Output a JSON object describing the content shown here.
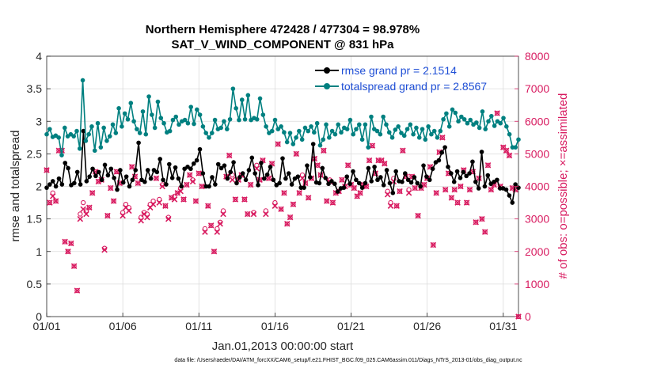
{
  "chart_data": {
    "type": "line",
    "title": "Northern Hemisphere 472428 / 477304 = 98.978%",
    "subtitle": "SAT_V_WIND_COMPONENT @ 831 hPa",
    "xlabel": "Jan.01,2013 00:00:00 start",
    "ylabel": "rmse and totalspread",
    "y2label": "# of obs: o=possible; ×=assimilated",
    "xlim": [
      1,
      32
    ],
    "ylim": [
      0,
      4
    ],
    "y2lim": [
      0,
      8000
    ],
    "grid": true,
    "x_ticks": [
      1,
      6,
      11,
      16,
      21,
      26,
      31
    ],
    "x_tick_labels": [
      "01/01",
      "01/06",
      "01/11",
      "01/16",
      "01/21",
      "01/26",
      "01/31"
    ],
    "y_ticks": [
      0,
      0.5,
      1,
      1.5,
      2,
      2.5,
      3,
      3.5,
      4
    ],
    "y_tick_labels": [
      "0",
      "0.5",
      "1",
      "1.5",
      "2",
      "2.5",
      "3",
      "3.5",
      "4"
    ],
    "y2_ticks": [
      0,
      1000,
      2000,
      3000,
      4000,
      5000,
      6000,
      7000,
      8000
    ],
    "y2_tick_labels": [
      "0",
      "1000",
      "2000",
      "3000",
      "4000",
      "5000",
      "6000",
      "7000",
      "8000"
    ],
    "legend_location": "top-right",
    "series": [
      {
        "name": "rmse grand pr = 2.1514",
        "color": "#000000",
        "axis": "left",
        "values": [
          1.98,
          2.03,
          2.08,
          2.0,
          2.12,
          2.03,
          2.36,
          2.28,
          2.02,
          2.05,
          2.22,
          2.03,
          2.85,
          2.08,
          2.15,
          2.27,
          2.16,
          2.22,
          2.1,
          2.33,
          2.17,
          2.27,
          2.13,
          1.95,
          2.25,
          2.06,
          2.15,
          2.0,
          2.1,
          2.25,
          2.67,
          2.1,
          2.07,
          2.25,
          2.12,
          2.25,
          2.22,
          2.42,
          2.1,
          2.03,
          2.34,
          2.13,
          2.29,
          2.12,
          2.0,
          2.27,
          2.3,
          2.27,
          2.35,
          2.4,
          2.57,
          2.2,
          2.0,
          2.0,
          2.14,
          2.03,
          2.34,
          2.28,
          2.32,
          2.12,
          2.22,
          2.37,
          2.05,
          2.14,
          2.2,
          2.1,
          2.25,
          2.44,
          2.2,
          2.02,
          2.36,
          2.12,
          2.18,
          2.3,
          2.1,
          2.02,
          2.05,
          2.43,
          2.12,
          2.2,
          2.03,
          2.12,
          2.15,
          1.98,
          1.98,
          2.32,
          2.14,
          2.65,
          2.06,
          2.05,
          2.28,
          2.13,
          2.04,
          2.08,
          2.04,
          1.92,
          1.97,
          1.98,
          2.15,
          2.04,
          2.23,
          2.1,
          2.05,
          1.98,
          2.05,
          2.28,
          2.08,
          2.3,
          2.1,
          2.14,
          2.02,
          2.25,
          2.05,
          1.9,
          2.23,
          2.08,
          2.07,
          2.2,
          2.1,
          2.06,
          2.14,
          2.05,
          2.0,
          2.32,
          2.15,
          2.1,
          2.27,
          2.37,
          2.4,
          2.52,
          2.6,
          2.3,
          2.2,
          2.07,
          2.23,
          2.13,
          2.22,
          2.16,
          2.2,
          2.38,
          2.07,
          1.97,
          2.53,
          2.0,
          2.17,
          2.04,
          2.07,
          2.1,
          1.97,
          1.97,
          1.95,
          1.86,
          1.75,
          2.03,
          1.98
        ]
      },
      {
        "name": "totalspread grand pr = 2.8567",
        "color": "#008080",
        "axis": "left",
        "values": [
          2.8,
          2.88,
          2.76,
          2.78,
          2.75,
          2.48,
          2.9,
          2.77,
          2.8,
          2.77,
          2.85,
          2.58,
          3.63,
          2.7,
          2.8,
          2.92,
          2.55,
          2.97,
          2.6,
          2.9,
          2.7,
          2.77,
          2.95,
          2.82,
          3.2,
          2.92,
          3.12,
          3.03,
          3.28,
          3.0,
          2.88,
          2.82,
          3.15,
          2.8,
          3.38,
          3.1,
          2.9,
          3.3,
          3.05,
          2.97,
          2.83,
          2.85,
          3.02,
          3.07,
          2.95,
          3.0,
          3.02,
          2.97,
          3.22,
          2.96,
          3.18,
          3.1,
          2.92,
          2.82,
          2.75,
          2.82,
          3.02,
          2.88,
          2.9,
          3.0,
          2.88,
          3.03,
          3.5,
          3.2,
          3.02,
          3.33,
          3.03,
          3.4,
          3.02,
          3.05,
          3.03,
          3.35,
          3.1,
          2.92,
          2.82,
          2.85,
          3.02,
          2.88,
          2.92,
          2.83,
          2.68,
          2.82,
          2.65,
          2.75,
          2.85,
          2.72,
          2.9,
          2.85,
          2.92,
          2.83,
          2.97,
          2.63,
          2.72,
          2.95,
          2.75,
          2.85,
          2.8,
          2.95,
          2.83,
          2.9,
          2.88,
          3.02,
          2.8,
          2.88,
          2.95,
          2.72,
          2.95,
          2.6,
          3.07,
          2.88,
          2.85,
          2.8,
          3.07,
          2.95,
          2.83,
          2.75,
          2.87,
          2.92,
          2.82,
          2.78,
          2.88,
          2.95,
          2.8,
          2.9,
          2.75,
          2.88,
          2.72,
          2.92,
          2.8,
          2.85,
          2.75,
          2.85,
          3.03,
          3.12,
          2.92,
          3.18,
          3.13,
          3.0,
          3.07,
          3.03,
          2.97,
          3.02,
          2.95,
          2.98,
          2.9,
          3.15,
          2.88,
          3.0,
          3.08,
          2.93,
          3.0,
          2.97,
          3.05,
          2.92,
          2.8,
          2.6,
          2.6,
          2.72
        ]
      }
    ],
    "obs_possible": {
      "name": "o=possible",
      "color": "#d81b60",
      "axis": "right",
      "values": [
        4500,
        3500,
        3800,
        3550,
        5100,
        5100,
        2300,
        2000,
        2250,
        1550,
        800,
        3150,
        3500,
        3250,
        3350,
        3800,
        4450,
        4150,
        4200,
        2100,
        3100,
        3950,
        3550,
        4450,
        4100,
        3200,
        3450,
        3350,
        4600,
        4300,
        4100,
        3050,
        3200,
        3150,
        3450,
        3550,
        4250,
        3600,
        4050,
        3400,
        3050,
        3650,
        3700,
        3800,
        3950,
        3600,
        4050,
        4350,
        4200,
        3550,
        4400,
        4000,
        2700,
        3400,
        2800,
        2000,
        2700,
        2900,
        3250,
        4300,
        4950,
        4350,
        3600,
        4200,
        4350,
        3600,
        3150,
        4050,
        3200,
        4650,
        4200,
        4800,
        3250,
        4250,
        4700,
        3500,
        5300,
        3300,
        3800,
        2850,
        3050,
        3450,
        5000,
        3800,
        4350,
        4100,
        3650,
        4250,
        4850,
        4650,
        4350,
        5100,
        3550,
        4200,
        3500,
        3800,
        3850,
        4200,
        4000,
        4650,
        4050,
        3950,
        3700,
        3800,
        4050,
        4000,
        4800,
        5250,
        4400,
        4800,
        4800,
        4700,
        3850,
        3500,
        4250,
        3400,
        3850,
        5100,
        4300,
        3900,
        4300,
        3950,
        3100,
        3950,
        4050,
        4250,
        4600,
        2200,
        3800,
        5050,
        5500,
        3900,
        4400,
        3650,
        3900,
        3500,
        4000,
        4500,
        3500,
        3900,
        4450,
        2900,
        4250,
        3000,
        2600,
        4650,
        3900,
        4050,
        6250,
        4000,
        5200,
        5100,
        4950,
        3950,
        3900,
        0
      ]
    },
    "obs_assimilated": {
      "name": "×=assimilated",
      "color": "#d81b60",
      "axis": "right",
      "values": [
        4500,
        3500,
        3700,
        3550,
        5100,
        5100,
        2300,
        2000,
        2250,
        1550,
        800,
        3000,
        3300,
        3150,
        3350,
        3800,
        4450,
        4150,
        4200,
        2050,
        3100,
        3950,
        3550,
        4450,
        4100,
        3100,
        3350,
        3250,
        4600,
        4300,
        4100,
        2950,
        3150,
        3050,
        3350,
        3450,
        4250,
        3500,
        4000,
        3400,
        3000,
        3650,
        3600,
        3800,
        3850,
        3600,
        4050,
        4350,
        4150,
        3550,
        4400,
        4000,
        2600,
        3400,
        2800,
        2000,
        2600,
        2850,
        3150,
        4300,
        4950,
        4200,
        3600,
        4200,
        4350,
        3600,
        3150,
        4050,
        3150,
        4550,
        4200,
        4800,
        3150,
        4250,
        4700,
        3400,
        5300,
        3300,
        3800,
        2850,
        3050,
        3450,
        5000,
        3800,
        4250,
        4100,
        3650,
        4250,
        4850,
        4650,
        4350,
        5100,
        3550,
        4150,
        3500,
        3800,
        3850,
        4200,
        4000,
        4650,
        4050,
        3950,
        3700,
        3800,
        4050,
        4000,
        4800,
        5250,
        4400,
        4800,
        4800,
        4700,
        3750,
        3400,
        4150,
        3400,
        3850,
        5100,
        4300,
        3800,
        4300,
        3950,
        3100,
        3950,
        4050,
        4250,
        4600,
        2200,
        3800,
        5050,
        5500,
        3900,
        4400,
        3650,
        3900,
        3500,
        4000,
        4500,
        3500,
        3900,
        4450,
        2900,
        4250,
        3000,
        2600,
        4650,
        3900,
        4050,
        6250,
        4000,
        5200,
        5100,
        4950,
        3950,
        3900,
        0
      ]
    },
    "annotations": [
      "data file: /Users/raeder/DAI/ATM_forcXX/CAM6_setup/f.e21.FHIST_BGC.f09_025.CAM6assim.011/Diags_NTrS_2013-01/obs_diag_output.nc"
    ]
  }
}
